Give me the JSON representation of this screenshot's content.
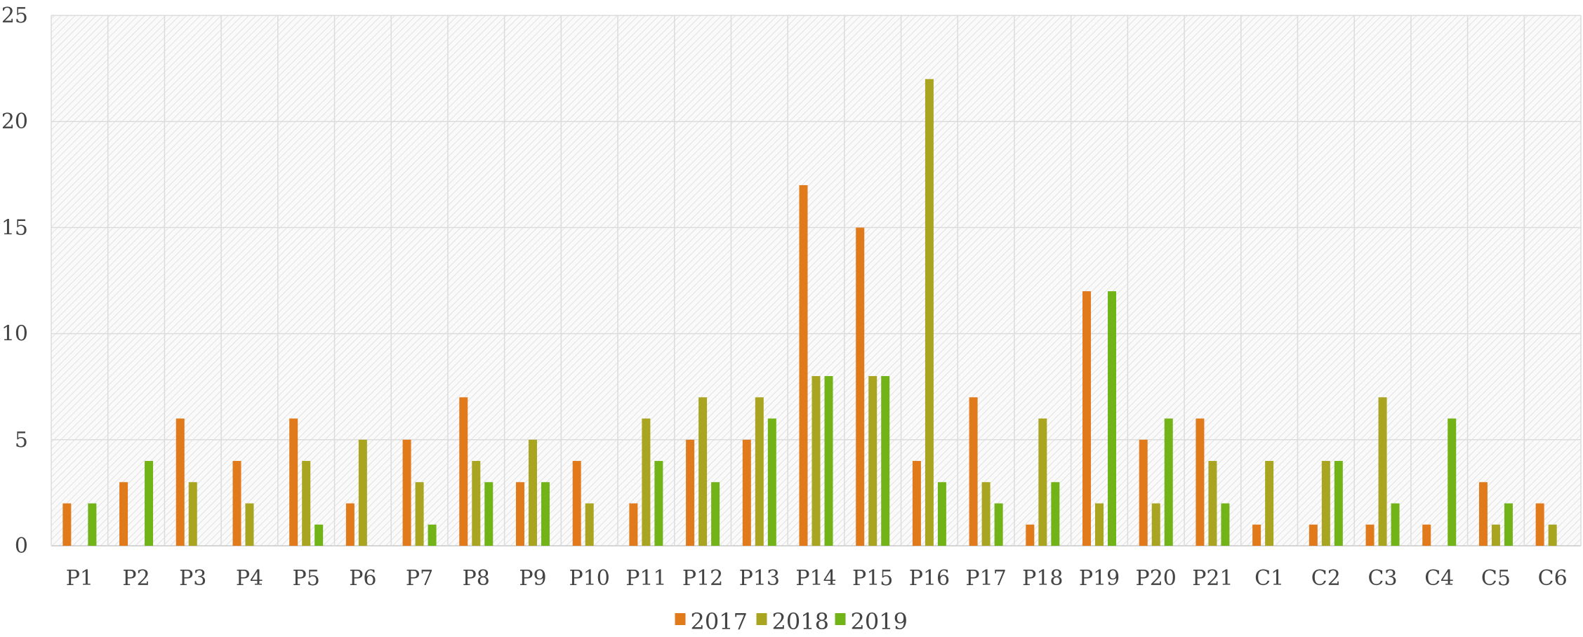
{
  "chart_data": {
    "type": "bar",
    "title": "",
    "xlabel": "",
    "ylabel": "",
    "ylim": [
      0,
      25
    ],
    "yticks": [
      0,
      5,
      10,
      15,
      20,
      25
    ],
    "grid": true,
    "legend_position": "bottom",
    "categories": [
      "P1",
      "P2",
      "P3",
      "P4",
      "P5",
      "P6",
      "P7",
      "P8",
      "P9",
      "P10",
      "P11",
      "P12",
      "P13",
      "P14",
      "P15",
      "P16",
      "P17",
      "P18",
      "P19",
      "P20",
      "P21",
      "C1",
      "C2",
      "C3",
      "C4",
      "C5",
      "C6"
    ],
    "series": [
      {
        "name": "2017",
        "color": "#E07A1B",
        "values": [
          2,
          3,
          6,
          4,
          6,
          2,
          5,
          7,
          3,
          4,
          2,
          5,
          5,
          17,
          15,
          4,
          7,
          1,
          12,
          5,
          6,
          1,
          1,
          1,
          1,
          3,
          2
        ]
      },
      {
        "name": "2018",
        "color": "#A9A520",
        "values": [
          0,
          0,
          3,
          2,
          4,
          5,
          3,
          4,
          5,
          2,
          6,
          7,
          7,
          8,
          8,
          22,
          3,
          6,
          2,
          2,
          4,
          4,
          4,
          7,
          0,
          1,
          1
        ]
      },
      {
        "name": "2019",
        "color": "#72B318",
        "values": [
          2,
          4,
          0,
          0,
          1,
          0,
          1,
          3,
          3,
          0,
          4,
          3,
          6,
          8,
          8,
          3,
          2,
          3,
          12,
          6,
          2,
          0,
          4,
          2,
          6,
          2,
          0
        ]
      }
    ]
  }
}
